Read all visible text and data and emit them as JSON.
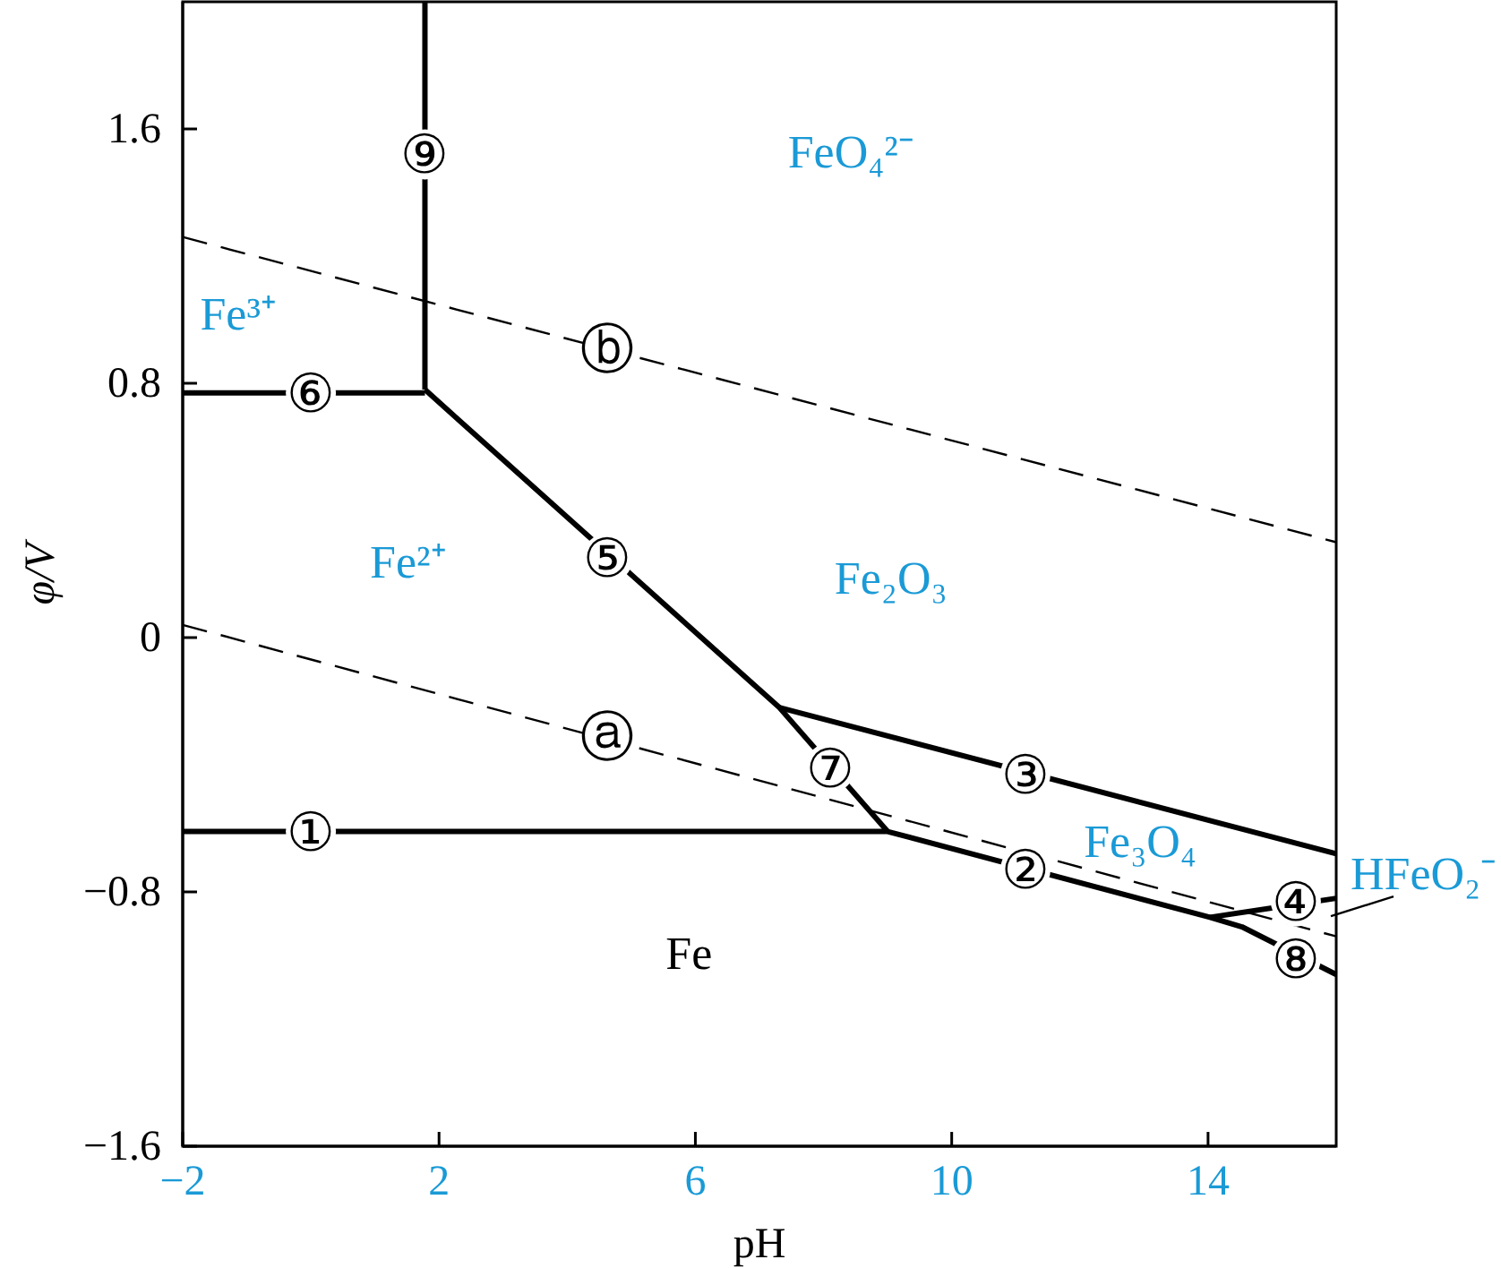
{
  "chart_data": {
    "type": "line",
    "xlabel": "pH",
    "ylabel": "φ/V",
    "xlim": [
      -2,
      16
    ],
    "ylim": [
      -1.6,
      2.0
    ],
    "xticks": [
      {
        "value": -2,
        "label": "−2"
      },
      2,
      6,
      10,
      14
    ],
    "yticks": [
      {
        "value": -1.6,
        "label": "−1.6"
      },
      {
        "value": -0.8,
        "label": "−0.8"
      },
      0,
      0.8,
      1.6
    ],
    "series": [
      {
        "color": "#000000",
        "line_style": "solid",
        "x": [
          -2,
          9.0,
          14.03,
          14.53,
          16
        ],
        "values": [
          -0.61,
          -0.61,
          -0.88,
          -0.91,
          -1.06
        ]
      },
      {
        "color": "#000000",
        "line_style": "solid",
        "x": [
          7.31,
          16
        ],
        "values": [
          -0.22,
          -0.68
        ]
      },
      {
        "color": "#000000",
        "line_style": "solid",
        "x": [
          14.03,
          16
        ],
        "values": [
          -0.88,
          -0.82
        ]
      },
      {
        "color": "#000000",
        "line_style": "solid",
        "x": [
          1.78,
          7.31,
          9.0
        ],
        "values": [
          0.78,
          -0.22,
          -0.61
        ]
      },
      {
        "color": "#000000",
        "line_style": "solid",
        "x": [
          -2,
          1.78
        ],
        "values": [
          0.77,
          0.77
        ]
      },
      {
        "color": "#000000",
        "line_style": "solid",
        "x": [
          1.78,
          1.78
        ],
        "values": [
          0.78,
          2.0
        ]
      },
      {
        "color": "#000000",
        "line_style": "dashed",
        "x": [
          -2,
          16
        ],
        "values": [
          0.04,
          -0.94
        ]
      },
      {
        "color": "#000000",
        "line_style": "dashed",
        "x": [
          -2,
          16
        ],
        "values": [
          1.26,
          0.3
        ]
      }
    ],
    "annotations": [
      {
        "text": "①",
        "x": 0,
        "y": -0.61
      },
      {
        "text": "②",
        "x": 11.15,
        "y": -0.73
      },
      {
        "text": "③",
        "x": 11.15,
        "y": -0.43
      },
      {
        "text": "④",
        "x": 15.37,
        "y": -0.83
      },
      {
        "text": "⑤",
        "x": 4.63,
        "y": 0.25
      },
      {
        "text": "⑥",
        "x": 0,
        "y": 0.77
      },
      {
        "text": "⑦",
        "x": 8.1,
        "y": -0.41
      },
      {
        "text": "⑧",
        "x": 15.37,
        "y": -1.01
      },
      {
        "text": "⑨",
        "x": 1.78,
        "y": 1.52
      },
      {
        "text": "ⓐ",
        "x": 4.63,
        "y": -0.31
      },
      {
        "text": "ⓑ",
        "x": 4.63,
        "y": 0.91
      },
      "Fe",
      "FeO₄²⁻",
      "Fe³⁺",
      "Fe²⁺",
      "Fe₂O₃",
      "Fe₃O₄",
      {
        "text": "HFeO₂⁻",
        "x": 16,
        "y": -0.82
      }
    ]
  }
}
